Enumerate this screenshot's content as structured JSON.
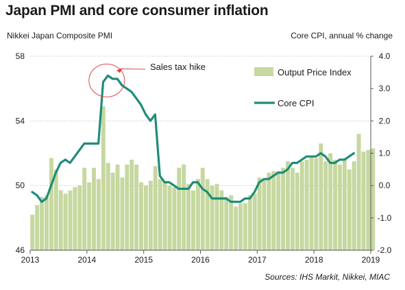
{
  "title": "Japan PMI and core consumer inflation",
  "left_axis_caption": "Nikkei Japan Composite PMI",
  "right_axis_caption": "Core CPI, annual % change",
  "source": "Sources: IHS Markit, Nikkei, MIAC",
  "colors": {
    "bars": "#c6d8a0",
    "line": "#1e8c7a",
    "circle": "#d94848",
    "grid": "#c8c8c8",
    "axis": "#555555"
  },
  "chart_data": {
    "type": "bar",
    "title": "Japan PMI and core consumer inflation",
    "x_ticks": [
      "2013",
      "2014",
      "2015",
      "2016",
      "2017",
      "2018",
      "2019"
    ],
    "x_range": [
      2013,
      2019
    ],
    "y_left": {
      "label": "Nikkei Japan Composite PMI",
      "ylim": [
        46,
        58
      ],
      "ticks": [
        46,
        50,
        54,
        58
      ]
    },
    "y_right": {
      "label": "Core CPI, annual % change",
      "ylim": [
        -2.0,
        4.0
      ],
      "ticks": [
        "-2.0",
        "-1.0",
        "0.0",
        "1.0",
        "2.0",
        "3.0",
        "4.0"
      ]
    },
    "annotation": "Sales tax hike",
    "legend": [
      "Output Price Index",
      "Core CPI"
    ],
    "bars": {
      "name": "Output Price Index",
      "axis": "left",
      "start": "2013-01",
      "values": [
        48.2,
        48.8,
        49.3,
        49.4,
        51.7,
        51.0,
        49.7,
        49.5,
        49.7,
        49.9,
        50.0,
        51.1,
        50.2,
        51.1,
        50.4,
        54.9,
        51.4,
        50.8,
        51.3,
        50.5,
        51.3,
        51.6,
        51.3,
        50.2,
        50.0,
        50.3,
        51.2,
        50.4,
        50.3,
        50.0,
        49.9,
        51.1,
        51.3,
        50.1,
        49.7,
        50.4,
        51.1,
        50.4,
        50.0,
        50.1,
        49.7,
        49.3,
        49.4,
        48.7,
        48.9,
        48.9,
        49.4,
        49.5,
        50.5,
        50.4,
        50.8,
        50.9,
        50.9,
        51.1,
        51.5,
        51.1,
        50.8,
        51.5,
        51.6,
        51.8,
        51.7,
        52.6,
        51.5,
        52.0,
        51.6,
        51.3,
        51.6,
        51.0,
        51.5,
        53.2,
        52.1,
        52.2,
        52.3
      ]
    },
    "line": {
      "name": "Core CPI",
      "axis": "right",
      "start": "2013-01",
      "values": [
        -0.2,
        -0.3,
        -0.5,
        -0.4,
        0.0,
        0.4,
        0.7,
        0.8,
        0.7,
        0.9,
        1.1,
        1.3,
        1.3,
        1.3,
        1.3,
        3.2,
        3.4,
        3.3,
        3.3,
        3.1,
        3.0,
        2.9,
        2.7,
        2.5,
        2.2,
        2.0,
        2.2,
        0.3,
        0.1,
        0.1,
        0.0,
        -0.1,
        -0.1,
        -0.1,
        0.1,
        0.1,
        -0.1,
        -0.2,
        -0.4,
        -0.4,
        -0.4,
        -0.4,
        -0.5,
        -0.5,
        -0.5,
        -0.4,
        -0.4,
        -0.2,
        0.1,
        0.2,
        0.2,
        0.3,
        0.4,
        0.4,
        0.5,
        0.7,
        0.7,
        0.8,
        0.9,
        0.9,
        0.9,
        1.0,
        0.9,
        0.7,
        0.7,
        0.8,
        0.8,
        0.9,
        1.0
      ]
    }
  }
}
